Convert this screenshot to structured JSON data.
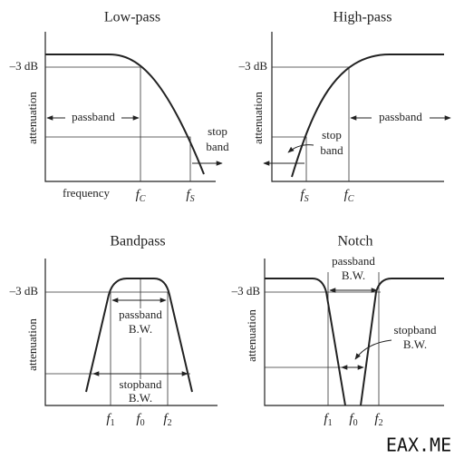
{
  "panels": [
    {
      "title": "Low-pass",
      "level": "–3 dB",
      "y_label": "attenuation",
      "x_label": "frequency",
      "annotations": [
        "passband",
        "stop",
        "band"
      ],
      "ticks": [
        {
          "f": "f",
          "sub": "C"
        },
        {
          "f": "f",
          "sub": "S"
        }
      ]
    },
    {
      "title": "High-pass",
      "level": "–3 dB",
      "y_label": "attenuation",
      "annotations": [
        "passband",
        "stop",
        "band"
      ],
      "ticks": [
        {
          "f": "f",
          "sub": "S"
        },
        {
          "f": "f",
          "sub": "C"
        }
      ]
    },
    {
      "title": "Bandpass",
      "level": "–3 dB",
      "y_label": "attenuation",
      "annotations": [
        "passband",
        "B.W.",
        "stopband",
        "B.W."
      ],
      "ticks": [
        {
          "f": "f",
          "sub": "1"
        },
        {
          "f": "f",
          "sub": "0"
        },
        {
          "f": "f",
          "sub": "2"
        }
      ]
    },
    {
      "title": "Notch",
      "level": "–3 dB",
      "y_label": "attenuation",
      "annotations": [
        "passband",
        "B.W.",
        "stopband",
        "B.W."
      ],
      "ticks": [
        {
          "f": "f",
          "sub": "1"
        },
        {
          "f": "f",
          "sub": "0"
        },
        {
          "f": "f",
          "sub": "2"
        }
      ]
    }
  ],
  "watermark": "EAX.ME"
}
